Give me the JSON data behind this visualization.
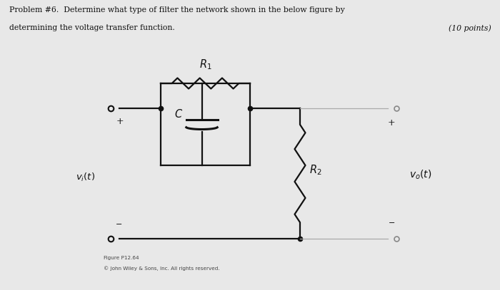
{
  "bg_color": "#e8e8e8",
  "title_line1": "Problem #6.  Determine what type of filter the network shown in the below figure by",
  "title_line2": "determining the voltage transfer function.",
  "points_text": "(10 points)",
  "caption_line1": "Figure P12.64",
  "caption_line2": "© John Wiley & Sons, Inc. All rights reserved.",
  "label_R1": "$R_1$",
  "label_C": "$C$",
  "label_R2": "$R_2$",
  "label_vi": "$v_i(t)$",
  "label_vo": "$v_o(t)$"
}
